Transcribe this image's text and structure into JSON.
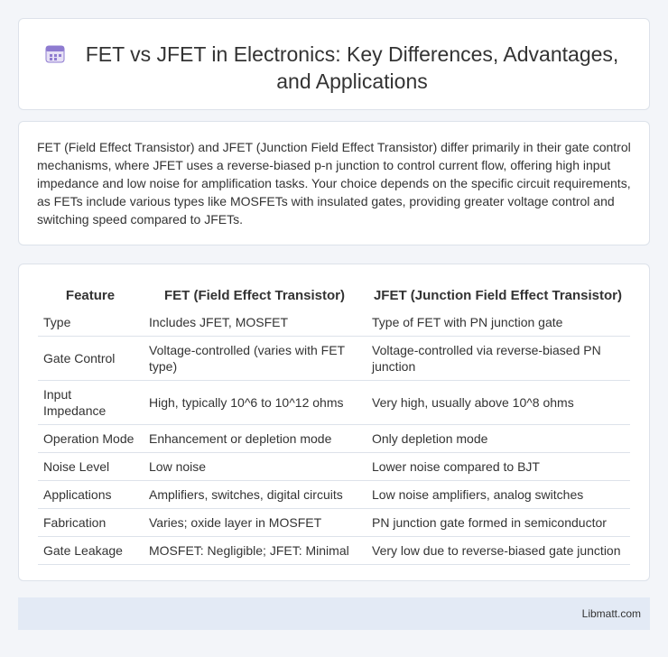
{
  "header": {
    "title": "FET vs JFET in Electronics: Key Differences, Advantages, and Applications"
  },
  "intro": "FET (Field Effect Transistor) and JFET (Junction Field Effect Transistor) differ primarily in their gate control mechanisms, where JFET uses a reverse-biased p-n junction to control current flow, offering high input impedance and low noise for amplification tasks. Your choice depends on the specific circuit requirements, as FETs include various types like MOSFETs with insulated gates, providing greater voltage control and switching speed compared to JFETs.",
  "table": {
    "columns": [
      "Feature",
      "FET (Field Effect Transistor)",
      "JFET (Junction Field Effect Transistor)"
    ],
    "rows": [
      [
        "Type",
        "Includes JFET, MOSFET",
        "Type of FET with PN junction gate"
      ],
      [
        "Gate Control",
        "Voltage-controlled (varies with FET type)",
        "Voltage-controlled via reverse-biased PN junction"
      ],
      [
        "Input Impedance",
        "High, typically 10^6 to 10^12 ohms",
        "Very high, usually above 10^8 ohms"
      ],
      [
        "Operation Mode",
        "Enhancement or depletion mode",
        "Only depletion mode"
      ],
      [
        "Noise Level",
        "Low noise",
        "Lower noise compared to BJT"
      ],
      [
        "Applications",
        "Amplifiers, switches, digital circuits",
        "Low noise amplifiers, analog switches"
      ],
      [
        "Fabrication",
        "Varies; oxide layer in MOSFET",
        "PN junction gate formed in semiconductor"
      ],
      [
        "Gate Leakage",
        "MOSFET: Negligible; JFET: Minimal",
        "Very low due to reverse-biased gate junction"
      ]
    ]
  },
  "footer": {
    "source": "Libmatt.com"
  }
}
